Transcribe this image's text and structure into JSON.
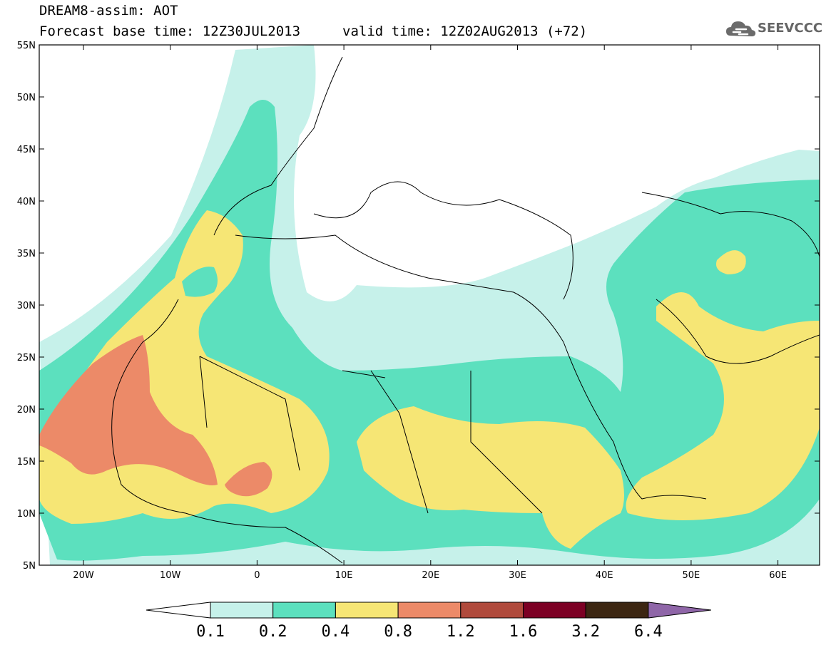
{
  "header": {
    "line1": "DREAM8-assim: AOT",
    "line2_left": "Forecast base time: 12Z30JUL2013",
    "line2_right": "valid time: 12Z02AUG2013 (+72)"
  },
  "logo": {
    "text": "SEEVCCC",
    "icon": "cloud-icon"
  },
  "map": {
    "lat_labels": [
      "55N",
      "50N",
      "45N",
      "40N",
      "35N",
      "30N",
      "25N",
      "20N",
      "15N",
      "10N",
      "5N"
    ],
    "lon_labels": [
      "20W",
      "10W",
      "0",
      "10E",
      "20E",
      "30E",
      "40E",
      "50E",
      "60E"
    ]
  },
  "colorbar": {
    "labels": [
      "0.1",
      "0.2",
      "0.4",
      "0.8",
      "1.2",
      "1.6",
      "3.2",
      "6.4"
    ],
    "colors": [
      "#ffffff",
      "#c6f1ea",
      "#5ce0be",
      "#f6e675",
      "#ec8a68",
      "#b04a3c",
      "#7c0024",
      "#3c2612",
      "#8f66a8"
    ]
  }
}
